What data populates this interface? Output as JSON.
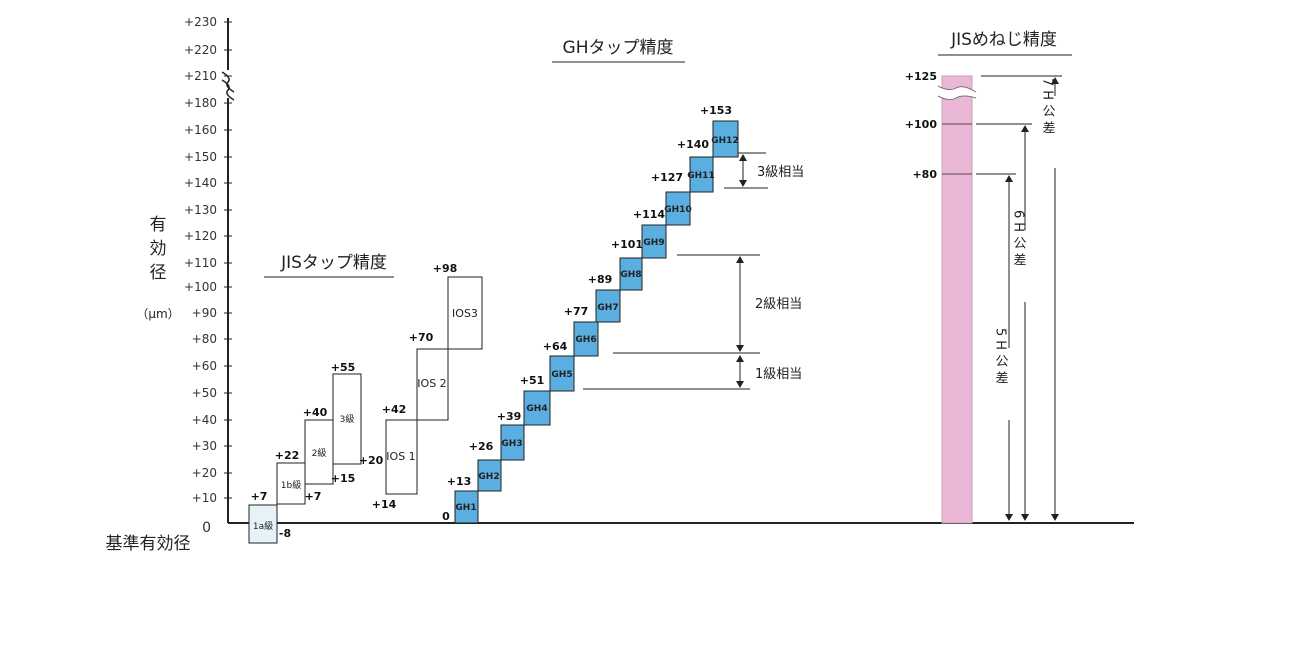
{
  "y_axis": {
    "title_chars": [
      "有",
      "効",
      "径"
    ],
    "unit": "（μm）",
    "zero_label": "0",
    "baseline_label": "基準有効径",
    "ticks": [
      "+230",
      "+220",
      "+210",
      "+180",
      "+160",
      "+150",
      "+140",
      "+130",
      "+120",
      "+110",
      "+100",
      "+90",
      "+80",
      "+60",
      "+50",
      "+40",
      "+30",
      "+20",
      "+10"
    ]
  },
  "jis_tap": {
    "title": "JISタップ精度",
    "boxes": [
      {
        "label": "1a級",
        "upper": "+7",
        "lower": "-8"
      },
      {
        "label": "1b級",
        "upper": "+22",
        "lower": "+7"
      },
      {
        "label": "2級",
        "upper": "+40",
        "lower": "+15"
      },
      {
        "label": "3級",
        "upper": "+55",
        "lower": "+20"
      }
    ]
  },
  "ios_tap": {
    "boxes": [
      {
        "label": "IOS 1",
        "upper": "+42",
        "lower": "+14"
      },
      {
        "label": "IOS 2",
        "upper": "+70"
      },
      {
        "label": "IOS3",
        "upper": "+98"
      }
    ]
  },
  "gh_tap": {
    "title": "GHタップ精度",
    "zero_label": "0",
    "boxes": [
      {
        "label": "GH1",
        "upper": "+13"
      },
      {
        "label": "GH2",
        "upper": "+26"
      },
      {
        "label": "GH3",
        "upper": "+39"
      },
      {
        "label": "GH4",
        "upper": "+51"
      },
      {
        "label": "GH5",
        "upper": "+64"
      },
      {
        "label": "GH6",
        "upper": "+77"
      },
      {
        "label": "GH7",
        "upper": "+89"
      },
      {
        "label": "GH8",
        "upper": "+101"
      },
      {
        "label": "GH9",
        "upper": "+114"
      },
      {
        "label": "GH10",
        "upper": "+127"
      },
      {
        "label": "GH11",
        "upper": "+140"
      },
      {
        "label": "GH12",
        "upper": "+153"
      }
    ],
    "grades": [
      "3級相当",
      "2級相当",
      "1級相当"
    ]
  },
  "jis_screw": {
    "title": "JISめねじ精度",
    "levels": [
      "+125",
      "+100",
      "+80"
    ],
    "tolerances": [
      "7H公差",
      "6H公差",
      "5H公差"
    ]
  },
  "colors": {
    "gh_fill": "#5aaee0",
    "screw_fill": "#ebb7d6",
    "box_1a_fill": "#e6f2fa",
    "line": "#222222"
  }
}
